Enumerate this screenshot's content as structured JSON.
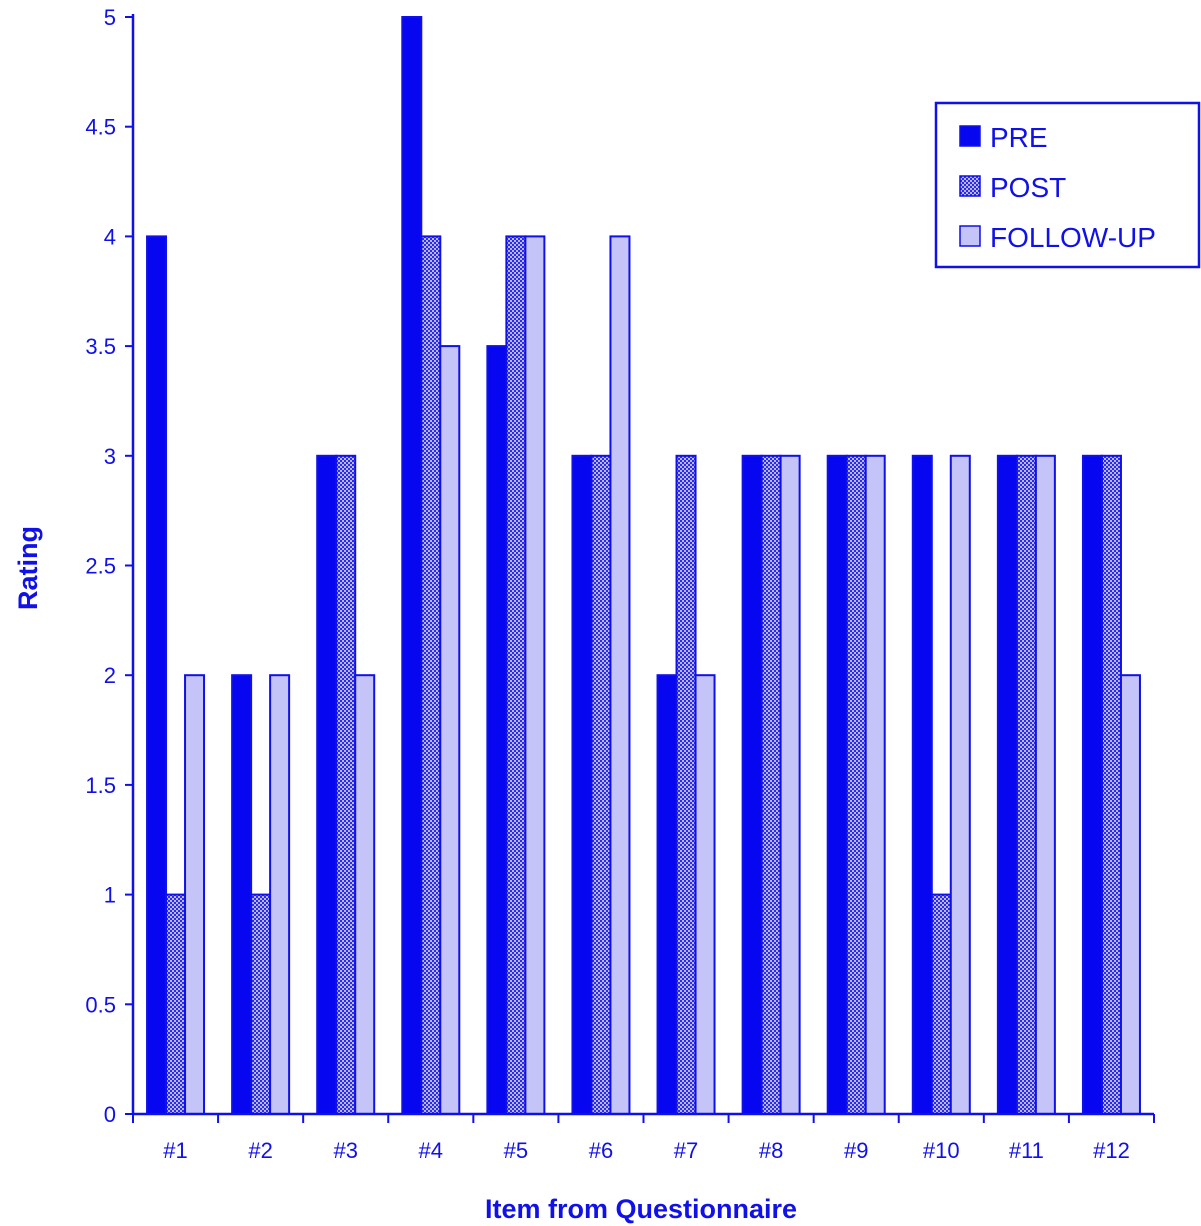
{
  "colors": {
    "axis": "#1010e8",
    "pre": "#0606f0",
    "post_base": "#b8b8f8",
    "post_dot": "#2a2af0",
    "follow": "#c4c4f8",
    "outline": "#1010e8"
  },
  "chart_data": {
    "type": "bar",
    "title": "",
    "xlabel": "Item from Questionnaire",
    "ylabel": "Rating",
    "ylim": [
      0,
      5
    ],
    "yticks": [
      "0",
      "0.5",
      "1",
      "1.5",
      "2",
      "2.5",
      "3",
      "3.5",
      "4",
      "4.5",
      "5"
    ],
    "grid": false,
    "legend_position": "top-right",
    "categories": [
      "#1",
      "#2",
      "#3",
      "#4",
      "#5",
      "#6",
      "#7",
      "#8",
      "#9",
      "#10",
      "#11",
      "#12"
    ],
    "series": [
      {
        "name": "PRE",
        "values": [
          4,
          2,
          3,
          5,
          3.5,
          3,
          2,
          3,
          3,
          3,
          3,
          3
        ]
      },
      {
        "name": "POST",
        "values": [
          1,
          1,
          3,
          4,
          4,
          3,
          3,
          3,
          3,
          1,
          3,
          3
        ]
      },
      {
        "name": "FOLLOW-UP",
        "values": [
          2,
          2,
          2,
          3.5,
          4,
          4,
          2,
          3,
          3,
          3,
          3,
          2
        ]
      }
    ]
  }
}
